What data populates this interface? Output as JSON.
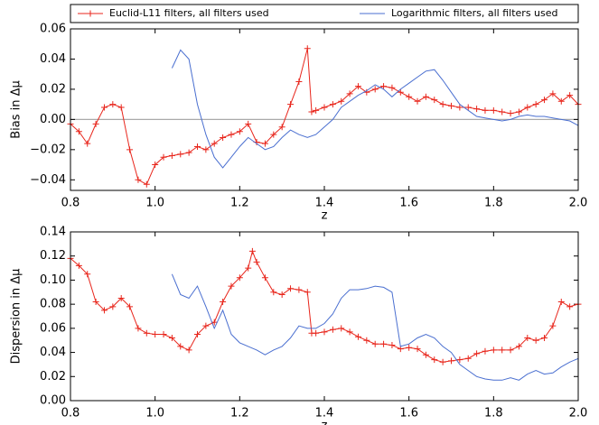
{
  "chart_data": [
    {
      "type": "line",
      "ylabel": "Bias in Δμ",
      "xlabel": "z",
      "xlim": [
        0.8,
        2.0
      ],
      "ylim": [
        -0.047,
        0.06
      ],
      "xticks": [
        0.8,
        {
          "value": 1,
          "label": "1.0"
        },
        1.2,
        1.4,
        1.6,
        1.8,
        {
          "value": 2,
          "label": "2.0"
        }
      ],
      "yticks": [
        {
          "value": -0.04,
          "label": "−0.04"
        },
        {
          "value": -0.02,
          "label": "−0.02"
        },
        {
          "value": 0,
          "label": "0.00"
        },
        {
          "value": 0.02,
          "label": "0.02"
        },
        {
          "value": 0.04,
          "label": "0.04"
        },
        {
          "value": 0.06,
          "label": "0.06"
        }
      ],
      "reference_line": 0,
      "legend": "top",
      "series": [
        {
          "name": "Euclid-L11 filters, all filters used",
          "color": "#e8261c",
          "marker": "+",
          "x": [
            0.8,
            0.82,
            0.84,
            0.86,
            0.88,
            0.9,
            0.92,
            0.94,
            0.96,
            0.98,
            1.0,
            1.02,
            1.04,
            1.06,
            1.08,
            1.1,
            1.12,
            1.14,
            1.16,
            1.18,
            1.2,
            1.22,
            1.24,
            1.26,
            1.28,
            1.3,
            1.32,
            1.34,
            1.36,
            1.37,
            1.38,
            1.4,
            1.42,
            1.44,
            1.46,
            1.48,
            1.5,
            1.52,
            1.54,
            1.56,
            1.58,
            1.6,
            1.62,
            1.64,
            1.66,
            1.68,
            1.7,
            1.72,
            1.74,
            1.76,
            1.78,
            1.8,
            1.82,
            1.84,
            1.86,
            1.88,
            1.9,
            1.92,
            1.94,
            1.96,
            1.98,
            2.0
          ],
          "values": [
            -0.003,
            -0.008,
            -0.016,
            -0.003,
            0.008,
            0.01,
            0.008,
            -0.02,
            -0.04,
            -0.043,
            -0.03,
            -0.025,
            -0.024,
            -0.023,
            -0.022,
            -0.018,
            -0.02,
            -0.016,
            -0.012,
            -0.01,
            -0.008,
            -0.003,
            -0.015,
            -0.016,
            -0.01,
            -0.005,
            0.01,
            0.025,
            0.047,
            0.005,
            0.006,
            0.008,
            0.01,
            0.012,
            0.017,
            0.022,
            0.018,
            0.02,
            0.022,
            0.021,
            0.018,
            0.015,
            0.012,
            0.015,
            0.013,
            0.01,
            0.009,
            0.008,
            0.008,
            0.007,
            0.006,
            0.006,
            0.005,
            0.004,
            0.005,
            0.008,
            0.01,
            0.013,
            0.017,
            0.012,
            0.016,
            0.01
          ]
        },
        {
          "name": "Logarithmic filters, all filters used",
          "color": "#4a6fd0",
          "x": [
            1.04,
            1.06,
            1.08,
            1.1,
            1.12,
            1.14,
            1.16,
            1.18,
            1.2,
            1.22,
            1.24,
            1.26,
            1.28,
            1.3,
            1.32,
            1.34,
            1.36,
            1.38,
            1.4,
            1.42,
            1.44,
            1.46,
            1.48,
            1.5,
            1.52,
            1.54,
            1.56,
            1.58,
            1.6,
            1.62,
            1.64,
            1.66,
            1.68,
            1.7,
            1.72,
            1.74,
            1.76,
            1.78,
            1.8,
            1.82,
            1.84,
            1.86,
            1.88,
            1.9,
            1.92,
            1.94,
            1.96,
            1.98,
            2.0
          ],
          "values": [
            0.034,
            0.046,
            0.04,
            0.01,
            -0.01,
            -0.025,
            -0.032,
            -0.025,
            -0.018,
            -0.012,
            -0.016,
            -0.02,
            -0.018,
            -0.012,
            -0.007,
            -0.01,
            -0.012,
            -0.01,
            -0.005,
            0.0,
            0.008,
            0.012,
            0.016,
            0.019,
            0.023,
            0.02,
            0.015,
            0.02,
            0.024,
            0.028,
            0.032,
            0.033,
            0.026,
            0.018,
            0.01,
            0.006,
            0.002,
            0.001,
            0.0,
            -0.001,
            0.0,
            0.002,
            0.003,
            0.002,
            0.002,
            0.001,
            0.0,
            -0.001,
            -0.004
          ]
        }
      ]
    },
    {
      "type": "line",
      "ylabel": "Dispersion in Δμ",
      "xlabel": "z",
      "xlim": [
        0.8,
        2.0
      ],
      "ylim": [
        0,
        0.14
      ],
      "xticks": [
        0.8,
        {
          "value": 1,
          "label": "1.0"
        },
        1.2,
        1.4,
        1.6,
        1.8,
        {
          "value": 2,
          "label": "2.0"
        }
      ],
      "yticks": [
        {
          "value": 0,
          "label": "0.00"
        },
        {
          "value": 0.02,
          "label": "0.02"
        },
        {
          "value": 0.04,
          "label": "0.04"
        },
        {
          "value": 0.06,
          "label": "0.06"
        },
        {
          "value": 0.08,
          "label": "0.08"
        },
        {
          "value": 0.1,
          "label": "0.10"
        },
        {
          "value": 0.12,
          "label": "0.12"
        },
        {
          "value": 0.14,
          "label": "0.14"
        }
      ],
      "series": [
        {
          "color": "#e8261c",
          "marker": "+",
          "x": [
            0.8,
            0.82,
            0.84,
            0.86,
            0.88,
            0.9,
            0.92,
            0.94,
            0.96,
            0.98,
            1.0,
            1.02,
            1.04,
            1.06,
            1.08,
            1.1,
            1.12,
            1.14,
            1.16,
            1.18,
            1.2,
            1.22,
            1.23,
            1.24,
            1.26,
            1.28,
            1.3,
            1.32,
            1.34,
            1.36,
            1.37,
            1.38,
            1.4,
            1.42,
            1.44,
            1.46,
            1.48,
            1.5,
            1.52,
            1.54,
            1.56,
            1.58,
            1.6,
            1.62,
            1.64,
            1.66,
            1.68,
            1.7,
            1.72,
            1.74,
            1.76,
            1.78,
            1.8,
            1.82,
            1.84,
            1.86,
            1.88,
            1.9,
            1.92,
            1.94,
            1.96,
            1.98,
            2.0
          ],
          "values": [
            0.118,
            0.112,
            0.105,
            0.082,
            0.075,
            0.078,
            0.085,
            0.078,
            0.06,
            0.056,
            0.055,
            0.055,
            0.052,
            0.045,
            0.042,
            0.055,
            0.062,
            0.065,
            0.082,
            0.095,
            0.102,
            0.11,
            0.124,
            0.115,
            0.102,
            0.09,
            0.088,
            0.093,
            0.092,
            0.09,
            0.056,
            0.056,
            0.057,
            0.059,
            0.06,
            0.057,
            0.053,
            0.05,
            0.047,
            0.047,
            0.046,
            0.043,
            0.044,
            0.043,
            0.038,
            0.034,
            0.032,
            0.033,
            0.034,
            0.035,
            0.039,
            0.041,
            0.042,
            0.042,
            0.042,
            0.045,
            0.052,
            0.05,
            0.052,
            0.062,
            0.082,
            0.078,
            0.08
          ]
        },
        {
          "color": "#4a6fd0",
          "x": [
            1.04,
            1.06,
            1.08,
            1.1,
            1.12,
            1.14,
            1.16,
            1.18,
            1.2,
            1.22,
            1.24,
            1.26,
            1.28,
            1.3,
            1.32,
            1.34,
            1.36,
            1.38,
            1.4,
            1.42,
            1.44,
            1.46,
            1.48,
            1.5,
            1.52,
            1.54,
            1.56,
            1.58,
            1.6,
            1.62,
            1.64,
            1.66,
            1.68,
            1.7,
            1.72,
            1.74,
            1.76,
            1.78,
            1.8,
            1.82,
            1.84,
            1.86,
            1.88,
            1.9,
            1.92,
            1.94,
            1.96,
            1.98,
            2.0
          ],
          "values": [
            0.105,
            0.088,
            0.085,
            0.095,
            0.078,
            0.06,
            0.075,
            0.055,
            0.048,
            0.045,
            0.042,
            0.038,
            0.042,
            0.045,
            0.052,
            0.062,
            0.06,
            0.06,
            0.064,
            0.072,
            0.085,
            0.092,
            0.092,
            0.093,
            0.095,
            0.094,
            0.09,
            0.045,
            0.047,
            0.052,
            0.055,
            0.052,
            0.045,
            0.04,
            0.03,
            0.025,
            0.02,
            0.018,
            0.017,
            0.017,
            0.019,
            0.017,
            0.022,
            0.025,
            0.022,
            0.023,
            0.028,
            0.032,
            0.035
          ]
        }
      ]
    }
  ]
}
